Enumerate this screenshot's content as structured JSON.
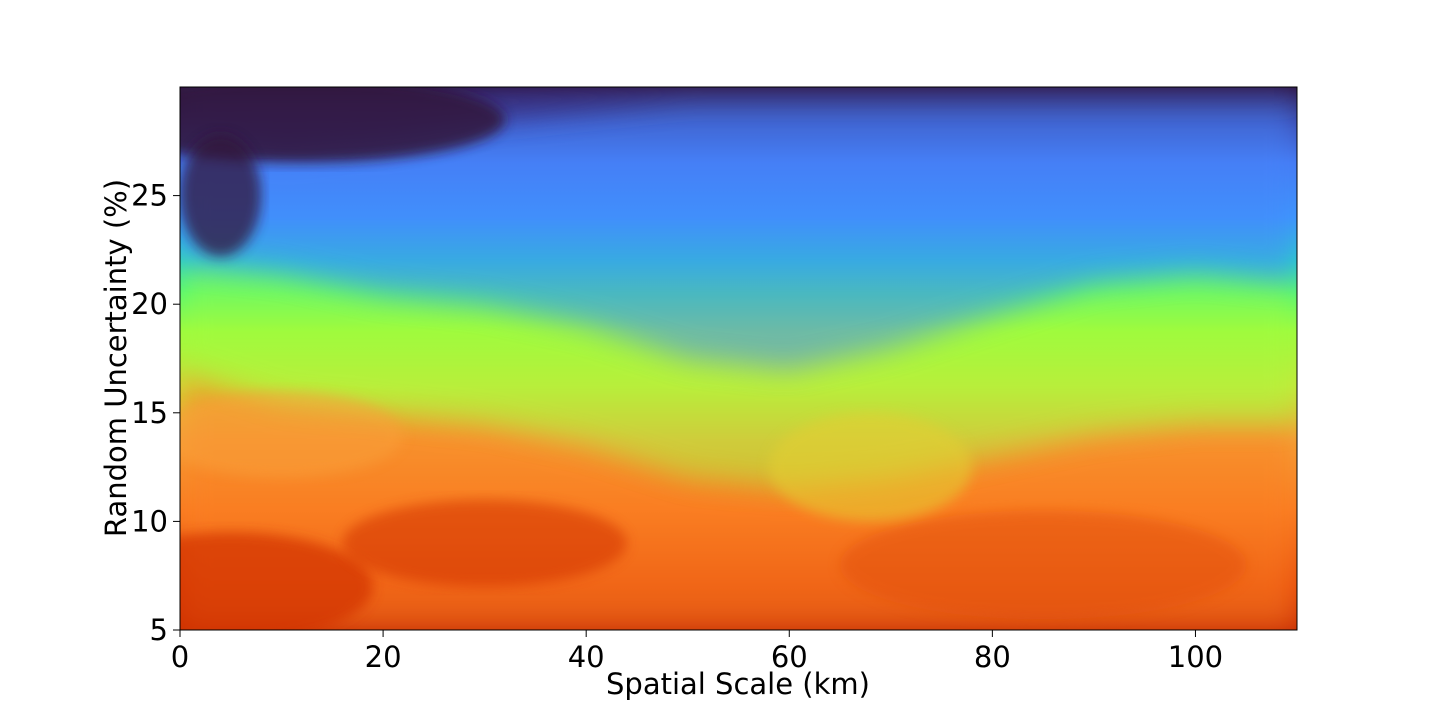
{
  "chart_data": {
    "type": "heatmap",
    "title": "",
    "xlabel": "Spatial Scale (km)",
    "ylabel": "Random Uncertainty (%)",
    "xlim": [
      0,
      110
    ],
    "ylim": [
      5,
      30
    ],
    "xticks": [
      0,
      20,
      40,
      60,
      80,
      100
    ],
    "yticks": [
      5,
      10,
      15,
      20,
      25
    ],
    "colormap": "turbo",
    "colorbar": false,
    "grid": false,
    "colors": {
      "deep": "#30123b",
      "indigo": "#3e3e9e",
      "blue": "#4686fb",
      "cyan": "#1ae4b6",
      "green": "#a4fc3c",
      "yellow": "#e4cf33",
      "orange": "#fb8022",
      "red": "#d23105"
    },
    "bands": [
      {
        "x": [
          0,
          10,
          20,
          30,
          40,
          50,
          60,
          70,
          80,
          90,
          100,
          110
        ],
        "y_top": [
          17,
          15.5,
          15,
          14.5,
          13.5,
          12,
          11.5,
          12,
          13,
          14,
          14.5,
          14.5
        ],
        "description": "orange-yellow / green boundary"
      },
      {
        "x": [
          0,
          10,
          20,
          30,
          40,
          50,
          60,
          70,
          80,
          90,
          100,
          110
        ],
        "y_top": [
          22,
          21.5,
          20.5,
          20,
          19,
          17.5,
          17,
          18,
          19.5,
          21,
          21.5,
          21
        ],
        "description": "green / blue boundary"
      },
      {
        "x": [
          0,
          10,
          20,
          30,
          40,
          50,
          60,
          70,
          80,
          90,
          100,
          110
        ],
        "y_top": [
          28,
          27,
          27.5,
          28.5,
          29,
          29.5,
          29.5,
          29.5,
          29.5,
          29.5,
          29.5,
          29.5
        ],
        "description": "blue / dark-indigo boundary"
      }
    ]
  }
}
